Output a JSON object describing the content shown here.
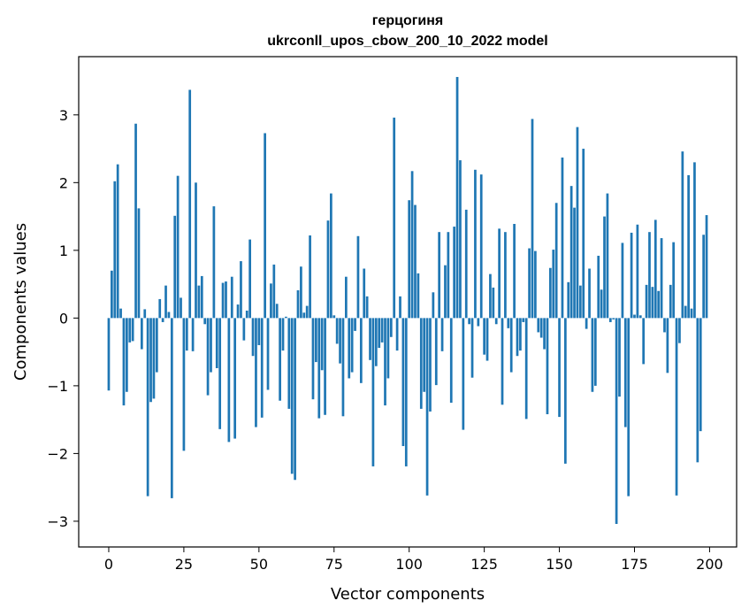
{
  "chart_data": {
    "type": "bar",
    "title_line1": "герцогиня",
    "title_line2": "ukrconll_upos_cbow_200_10_2022 model",
    "xlabel": "Vector components",
    "ylabel": "Components values",
    "xlim": [
      -10,
      209
    ],
    "ylim": [
      -3.38,
      3.86
    ],
    "x_ticks": [
      0,
      25,
      50,
      75,
      100,
      125,
      150,
      175,
      200
    ],
    "y_ticks": [
      -3,
      -2,
      -1,
      0,
      1,
      2,
      3
    ],
    "color": "#1f77b4",
    "grid": false,
    "values": [
      -1.07,
      0.7,
      2.02,
      2.27,
      0.14,
      -1.29,
      -1.09,
      -0.36,
      -0.34,
      2.87,
      1.62,
      -0.46,
      0.13,
      -2.63,
      -1.24,
      -1.19,
      -0.8,
      0.28,
      -0.06,
      0.48,
      0.09,
      -2.66,
      1.51,
      2.1,
      0.3,
      -1.96,
      -0.48,
      3.37,
      -0.49,
      2.0,
      0.48,
      0.62,
      -0.09,
      -1.14,
      -0.8,
      1.65,
      -0.74,
      -1.64,
      0.52,
      0.54,
      -1.83,
      0.61,
      -1.78,
      0.2,
      0.84,
      -0.33,
      0.11,
      1.16,
      -0.56,
      -1.61,
      -0.4,
      -1.47,
      2.73,
      -1.06,
      0.51,
      0.79,
      0.21,
      -1.22,
      -0.48,
      0.02,
      -1.34,
      -2.3,
      -2.39,
      0.41,
      0.76,
      0.08,
      0.18,
      1.22,
      -1.2,
      -0.65,
      -1.48,
      -0.77,
      -1.43,
      1.44,
      1.84,
      0.04,
      -0.38,
      -0.67,
      -1.45,
      0.61,
      -0.89,
      -0.8,
      -0.19,
      1.21,
      -0.96,
      0.73,
      0.32,
      -0.62,
      -2.19,
      -0.71,
      -0.44,
      -0.36,
      -1.29,
      -0.89,
      -0.28,
      2.96,
      -0.48,
      0.32,
      -1.89,
      -2.19,
      1.74,
      2.17,
      1.67,
      0.66,
      -1.34,
      -1.09,
      -2.62,
      -1.38,
      0.38,
      -0.99,
      1.27,
      -0.49,
      0.78,
      1.27,
      -1.25,
      1.35,
      3.56,
      2.33,
      -1.65,
      1.6,
      -0.09,
      -0.88,
      2.19,
      -0.12,
      2.12,
      -0.54,
      -0.63,
      0.65,
      0.45,
      -0.09,
      1.32,
      -1.28,
      1.27,
      -0.15,
      -0.8,
      1.39,
      -0.56,
      -0.48,
      -0.06,
      -1.49,
      1.03,
      2.94,
      0.99,
      -0.21,
      -0.29,
      -0.46,
      -1.42,
      0.74,
      1.01,
      1.7,
      -1.46,
      2.37,
      -2.15,
      0.53,
      1.95,
      1.63,
      2.82,
      0.48,
      2.5,
      -0.16,
      0.73,
      -1.09,
      -1.0,
      0.92,
      0.42,
      1.5,
      1.84,
      -0.06,
      -0.02,
      -3.04,
      -1.16,
      1.11,
      -1.61,
      -2.63,
      1.26,
      0.05,
      1.38,
      0.04,
      -0.68,
      0.49,
      1.27,
      0.46,
      1.45,
      0.4,
      1.18,
      -0.21,
      -0.81,
      0.49,
      1.12,
      -2.62,
      -0.37,
      2.46,
      0.18,
      2.11,
      0.14,
      2.3,
      -2.13,
      -1.67,
      1.23,
      1.52
    ]
  }
}
